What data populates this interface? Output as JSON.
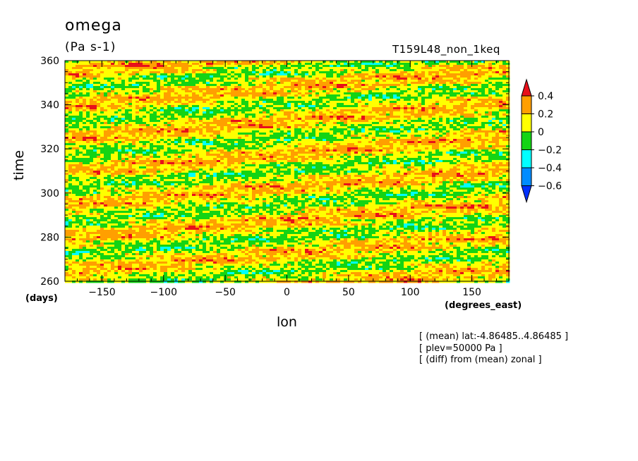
{
  "header": {
    "title": "omega",
    "units": "(Pa s-1)",
    "run_name": "T159L48_non_1keq"
  },
  "notes": [
    "[ (mean) lat:-4.86485..4.86485 ]",
    "[ plev=50000 Pa ]",
    "[ (diff) from (mean) zonal ]"
  ],
  "chart_data": {
    "type": "heatmap",
    "title": "omega",
    "units": "(Pa s-1)",
    "xlabel": "lon",
    "xunits": "(degrees_east)",
    "ylabel": "time",
    "yunits": "(days)",
    "xlim": [
      -180,
      180
    ],
    "ylim": [
      260,
      360
    ],
    "xticks": [
      -150,
      -100,
      -50,
      0,
      50,
      100,
      150
    ],
    "yticks": [
      260,
      280,
      300,
      320,
      340,
      360
    ],
    "legend_position": "right",
    "colorbar": {
      "labels": [
        "0.4",
        "0.2",
        "0",
        "-0.2",
        "-0.4",
        "-0.6"
      ],
      "levels": [
        0.4,
        0.2,
        0,
        -0.2,
        -0.4,
        -0.6
      ],
      "colors": [
        "#e8101a",
        "#ff9f00",
        "#ffff00",
        "#14d414",
        "#00ffff",
        "#008cff",
        "#0030ff"
      ],
      "extend": "both"
    },
    "band_colors": {
      "above_0.4": "#e8101a",
      "0.2_to_0.4": "#ff9f00",
      "0_to_0.2": "#ffff00",
      "-0.2_to_0": "#14d414",
      "-0.4_to_-0.2": "#00ffff",
      "-0.6_to_-0.4": "#008cff",
      "below_-0.6": "#0030ff"
    }
  }
}
